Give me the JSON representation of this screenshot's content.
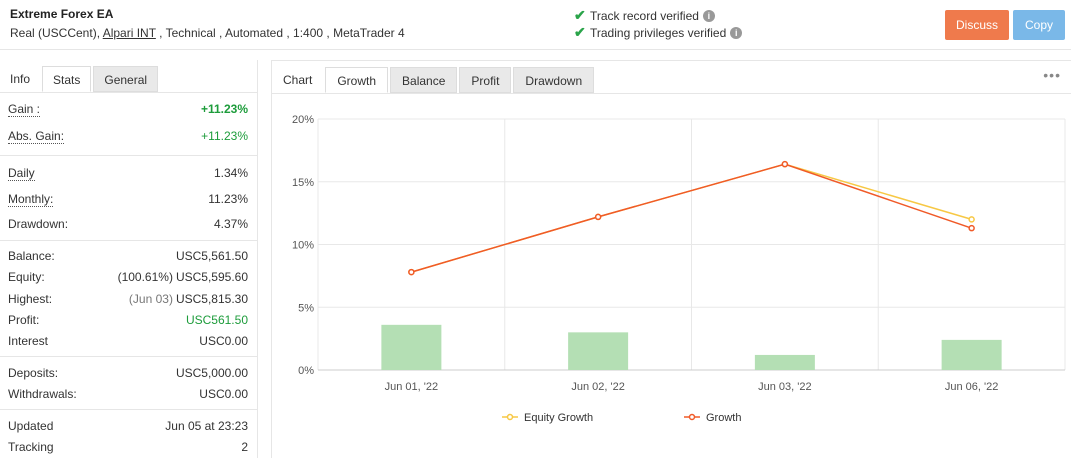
{
  "header": {
    "title": "Extreme Forex EA",
    "meta_prefix": "Real (USCCent), ",
    "broker": "Alpari INT",
    "meta_suffix": " , Technical , Automated , 1:400 , MetaTrader 4",
    "verified_track": "Track record verified",
    "verified_trading": "Trading privileges verified",
    "discuss_label": "Discuss",
    "copy_label": "Copy"
  },
  "left_tabs": [
    "Info",
    "Stats",
    "General"
  ],
  "stats": {
    "gain": {
      "label": "Gain :",
      "value": "+11.23%"
    },
    "abs_gain": {
      "label": "Abs. Gain:",
      "value": "+11.23%"
    },
    "daily": {
      "label": "Daily",
      "value": "1.34%"
    },
    "monthly": {
      "label": "Monthly:",
      "value": "11.23%"
    },
    "drawdown": {
      "label": "Drawdown:",
      "value": "4.37%"
    },
    "balance": {
      "label": "Balance:",
      "value": "USC5,561.50"
    },
    "equity": {
      "label": "Equity:",
      "prefix": "(100.61%)",
      "value": "USC5,595.60"
    },
    "highest": {
      "label": "Highest:",
      "prefix": "(Jun 03)",
      "value": "USC5,815.30"
    },
    "profit": {
      "label": "Profit:",
      "value": "USC561.50"
    },
    "interest": {
      "label": "Interest",
      "value": "USC0.00"
    },
    "deposits": {
      "label": "Deposits:",
      "value": "USC5,000.00"
    },
    "withdrawals": {
      "label": "Withdrawals:",
      "value": "USC0.00"
    },
    "updated": {
      "label": "Updated",
      "value": "Jun 05 at 23:23"
    },
    "tracking": {
      "label": "Tracking",
      "value": "2"
    }
  },
  "right_tabs": [
    "Chart",
    "Growth",
    "Balance",
    "Profit",
    "Drawdown"
  ],
  "more_icon": "more-dots-icon",
  "colors": {
    "growth": "#f05a28",
    "equity_growth": "#f7c844",
    "bars": "#b4dfb4",
    "gain_positive": "#1d9c3b",
    "discuss": "#ef7a4c",
    "copy": "#7ab8e8"
  },
  "chart_data": {
    "type": "line",
    "categories": [
      "Jun 01, '22",
      "Jun 02, '22",
      "Jun 03, '22",
      "Jun 06, '22"
    ],
    "ylim": [
      0,
      20
    ],
    "yticks": [
      "0%",
      "5%",
      "10%",
      "15%",
      "20%"
    ],
    "series": [
      {
        "name": "Equity Growth",
        "type": "line",
        "values": [
          7.8,
          12.2,
          16.4,
          12.0
        ]
      },
      {
        "name": "Growth",
        "type": "line",
        "values": [
          7.8,
          12.2,
          16.4,
          11.3
        ]
      },
      {
        "type": "bar",
        "values": [
          3.6,
          3.0,
          1.2,
          2.4
        ]
      }
    ],
    "legend": [
      "Equity Growth",
      "Growth"
    ],
    "legend_position": "bottom",
    "grid": true
  }
}
